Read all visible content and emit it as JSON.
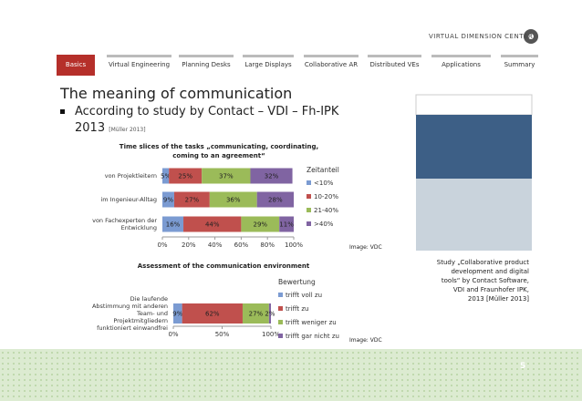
{
  "logo": "VIRTUAL DIMENSION CENTER",
  "nav": [
    "Basics",
    "Virtual Engineering",
    "Planning Desks",
    "Large Displays",
    "Collaborative AR",
    "Distributed VEs",
    "Applications",
    "Summary"
  ],
  "title": "The meaning of communication",
  "bullet": "According to study by Contact – VDI – Fh-IPK 2013",
  "bullet_ref": "[Müller 2013]",
  "image_credit_1": "Image: VDC",
  "image_credit_2": "Image: VDC",
  "caption": "Study „Collaborative product development and digital tools“ by Contact Software, VDI and Fraunhofer IPK, 2013 [Müller 2013]",
  "page_number": "5",
  "chart_data": [
    {
      "type": "stacked-hbar",
      "title": "Time slices of the tasks „communicating, coordinating, coming to an agreement“",
      "categories": [
        "von Projektleitern",
        "im Ingenieur-Alltag",
        "von Fachexperten der Entwicklung"
      ],
      "legend_title": "Zeitanteil",
      "series": [
        {
          "name": "<10%",
          "color": "#7b9bd2",
          "values": [
            5,
            9,
            16
          ],
          "value_labels": [
            "5%",
            "9%",
            "16%"
          ]
        },
        {
          "name": "10-20%",
          "color": "#c0504d",
          "values": [
            25,
            27,
            44
          ],
          "value_labels": [
            "25%",
            "27%",
            "44%"
          ]
        },
        {
          "name": "21-40%",
          "color": "#9bbb59",
          "values": [
            37,
            36,
            29
          ],
          "value_labels": [
            "37%",
            "36%",
            "29%"
          ]
        },
        {
          "name": ">40%",
          "color": "#8064a2",
          "values": [
            32,
            28,
            11
          ],
          "value_labels": [
            "32%",
            "28%",
            "11%"
          ]
        }
      ],
      "xlim": [
        0,
        100
      ],
      "xticks": [
        {
          "value": 0,
          "label": "0%"
        },
        {
          "value": 20,
          "label": "20%"
        },
        {
          "value": 40,
          "label": "40%"
        },
        {
          "value": 60,
          "label": "60%"
        },
        {
          "value": 80,
          "label": "80%"
        },
        {
          "value": 100,
          "label": "100%"
        }
      ]
    },
    {
      "type": "stacked-hbar",
      "title": "Assessment of the communication environment",
      "categories": [
        "Die laufende Abstimmung mit anderen Team- und Projektmitgliedern funktioniert einwandfrei"
      ],
      "legend_title": "Bewertung",
      "series": [
        {
          "name": "trifft voll zu",
          "color": "#7b9bd2",
          "values": [
            9
          ],
          "value_labels": [
            "9%"
          ]
        },
        {
          "name": "trifft zu",
          "color": "#c0504d",
          "values": [
            62
          ],
          "value_labels": [
            "62%"
          ]
        },
        {
          "name": "trifft weniger zu",
          "color": "#9bbb59",
          "values": [
            27
          ],
          "value_labels": [
            "27%"
          ]
        },
        {
          "name": "trifft gar nicht zu",
          "color": "#8064a2",
          "values": [
            2
          ],
          "value_labels": [
            "2%"
          ]
        }
      ],
      "xlim": [
        0,
        100
      ],
      "xticks": [
        {
          "value": 0,
          "label": "0%"
        },
        {
          "value": 50,
          "label": "50%"
        },
        {
          "value": 100,
          "label": "100%"
        }
      ]
    }
  ]
}
